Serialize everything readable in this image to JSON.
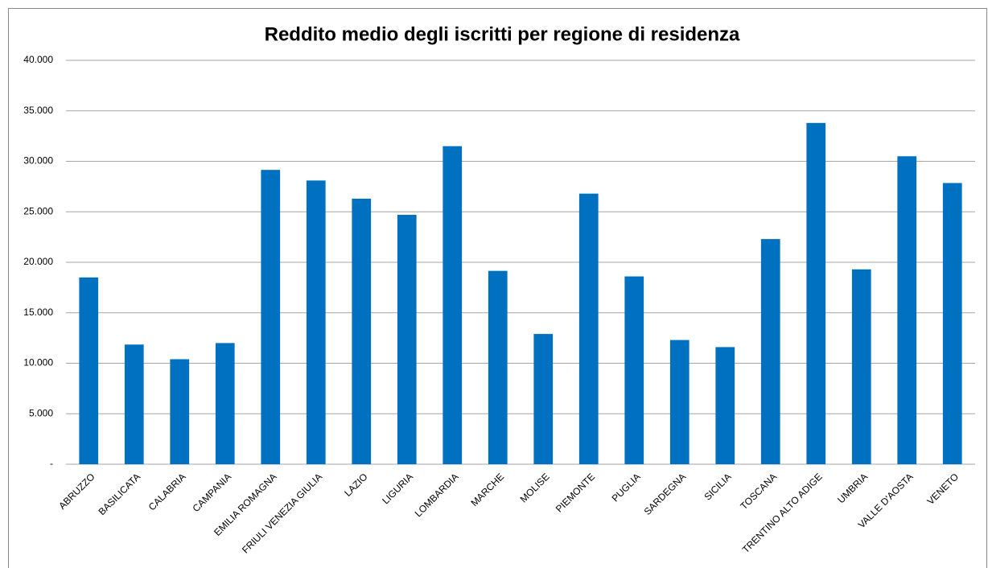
{
  "chart_data": {
    "type": "bar",
    "title": "Reddito medio degli iscritti per regione di residenza",
    "categories": [
      "ABRUZZO",
      "BASILICATA",
      "CALABRIA",
      "CAMPANIA",
      "EMILIA ROMAGNA",
      "FRIULI VENEZIA GIULIA",
      "LAZIO",
      "LIGURIA",
      "LOMBARDIA",
      "MARCHE",
      "MOLISE",
      "PIEMONTE",
      "PUGLIA",
      "SARDEGNA",
      "SICILIA",
      "TOSCANA",
      "TRENTINO ALTO ADIGE",
      "UMBRIA",
      "VALLE D'AOSTA",
      "VENETO"
    ],
    "values": [
      18500,
      11850,
      10400,
      12000,
      29150,
      28100,
      26300,
      24700,
      31500,
      19150,
      12900,
      26800,
      18600,
      12300,
      11600,
      22300,
      33800,
      19300,
      30500,
      27850
    ],
    "color": "#0070c0",
    "ylim": [
      0,
      40000
    ],
    "yticks": [
      {
        "value": 0,
        "label": "-"
      },
      {
        "value": 5000,
        "label": "5.000"
      },
      {
        "value": 10000,
        "label": "10.000"
      },
      {
        "value": 15000,
        "label": "15.000"
      },
      {
        "value": 20000,
        "label": "20.000"
      },
      {
        "value": 25000,
        "label": "25.000"
      },
      {
        "value": 30000,
        "label": "30.000"
      },
      {
        "value": 35000,
        "label": "35.000"
      },
      {
        "value": 40000,
        "label": "40.000"
      }
    ],
    "grid": true
  }
}
